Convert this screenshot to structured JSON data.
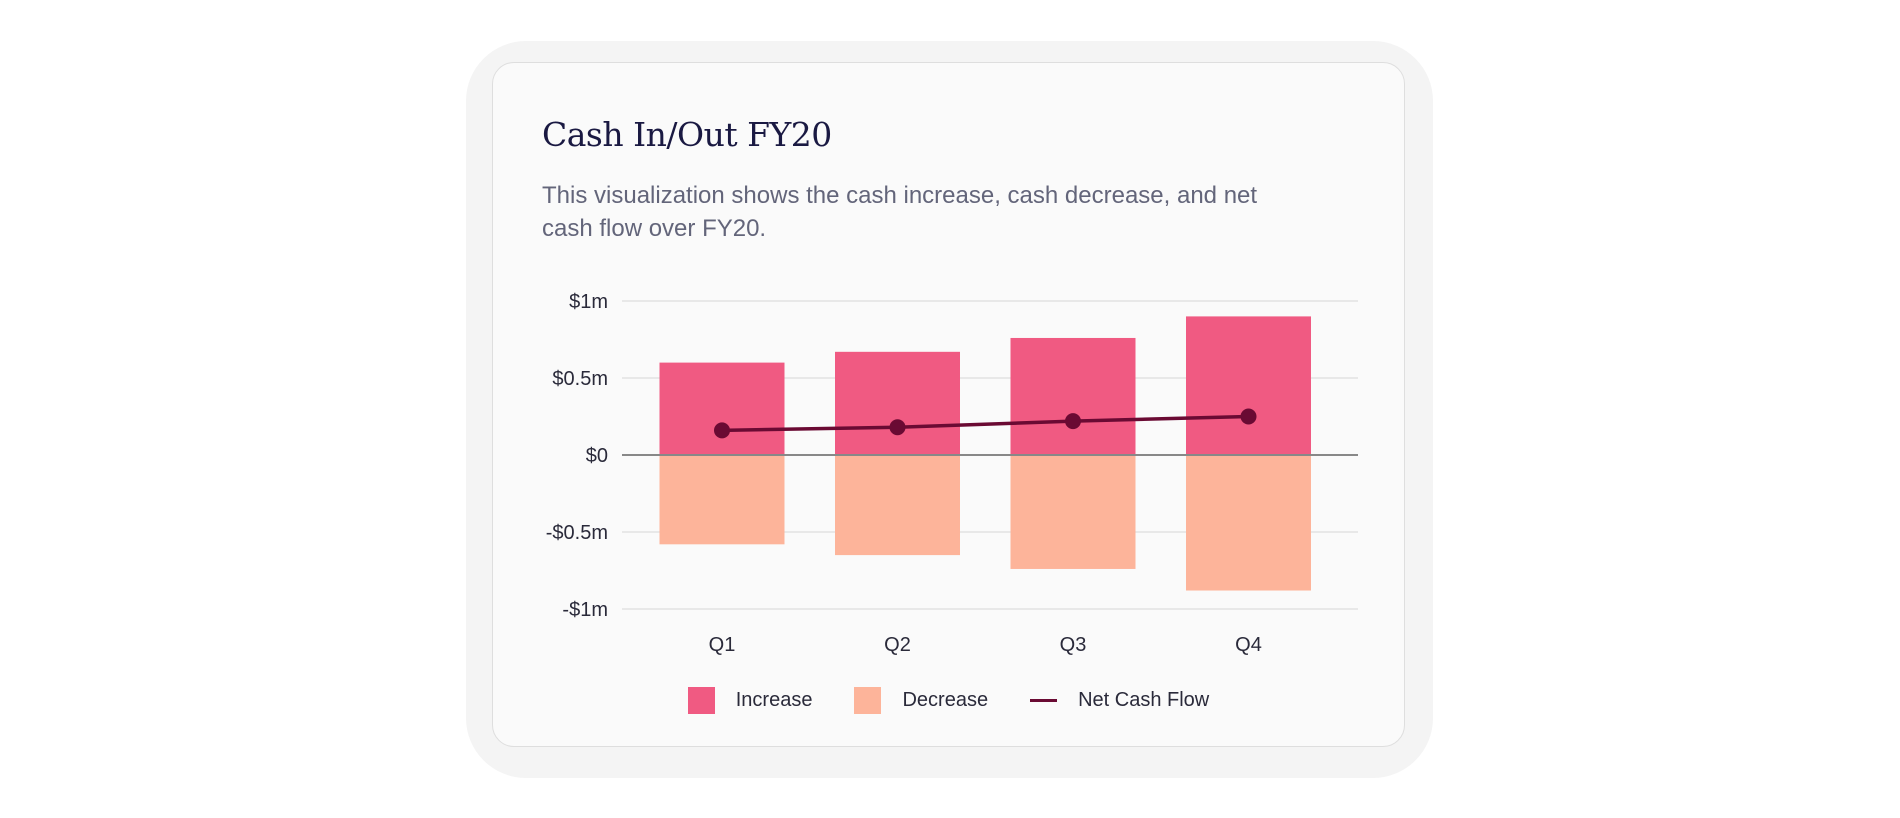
{
  "card": {
    "title": "Cash In/Out FY20",
    "subtitle": "This visualization shows the cash increase, cash decrease, and net cash flow over FY20."
  },
  "chart_data": {
    "type": "bar",
    "categories": [
      "Q1",
      "Q2",
      "Q3",
      "Q4"
    ],
    "series": [
      {
        "name": "Increase",
        "type": "bar",
        "values": [
          0.6,
          0.67,
          0.76,
          0.9
        ]
      },
      {
        "name": "Decrease",
        "type": "bar",
        "values": [
          -0.58,
          -0.65,
          -0.74,
          -0.88
        ]
      },
      {
        "name": "Net Cash Flow",
        "type": "line",
        "values": [
          0.16,
          0.18,
          0.22,
          0.25
        ]
      }
    ],
    "ylim": [
      -1,
      1
    ],
    "yticks": [
      1,
      0.5,
      0,
      -0.5,
      -1
    ],
    "ytick_labels": [
      "$1m",
      "$0.5m",
      "$0",
      "-$0.5m",
      "-$1m"
    ],
    "grid": true,
    "legend_position": "bottom",
    "colors": {
      "increase": "#f05a82",
      "decrease": "#fdb49a",
      "net": "#6a0a33",
      "grid": "#e2e2e2",
      "zero_line": "#888888"
    }
  },
  "legend": {
    "increase_label": "Increase",
    "decrease_label": "Decrease",
    "net_label": "Net Cash Flow"
  }
}
